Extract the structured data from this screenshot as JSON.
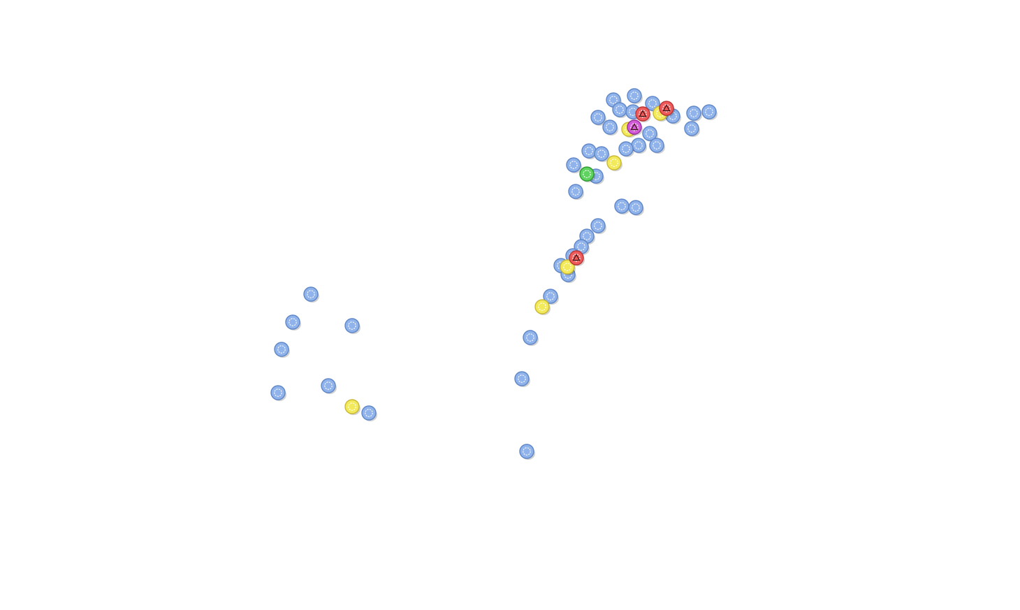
{
  "map": {
    "background": "#ffffff",
    "marker_types": {
      "blue": {
        "fill": "#8fb3ea",
        "stroke": "#5f86c6",
        "icon": "circle-marker-icon"
      },
      "yellow": {
        "fill": "#f2ea5a",
        "stroke": "#c9b833",
        "icon": "circle-marker-icon"
      },
      "red": {
        "fill": "#ef5b5b",
        "stroke": "#b93434",
        "icon": "triangle-marker-icon"
      },
      "green": {
        "fill": "#5fd35f",
        "stroke": "#2f9a2f",
        "icon": "circle-marker-icon"
      },
      "magenta": {
        "fill": "#d45bd8",
        "stroke": "#9a2fa0",
        "icon": "triangle-marker-icon"
      }
    }
  }
}
